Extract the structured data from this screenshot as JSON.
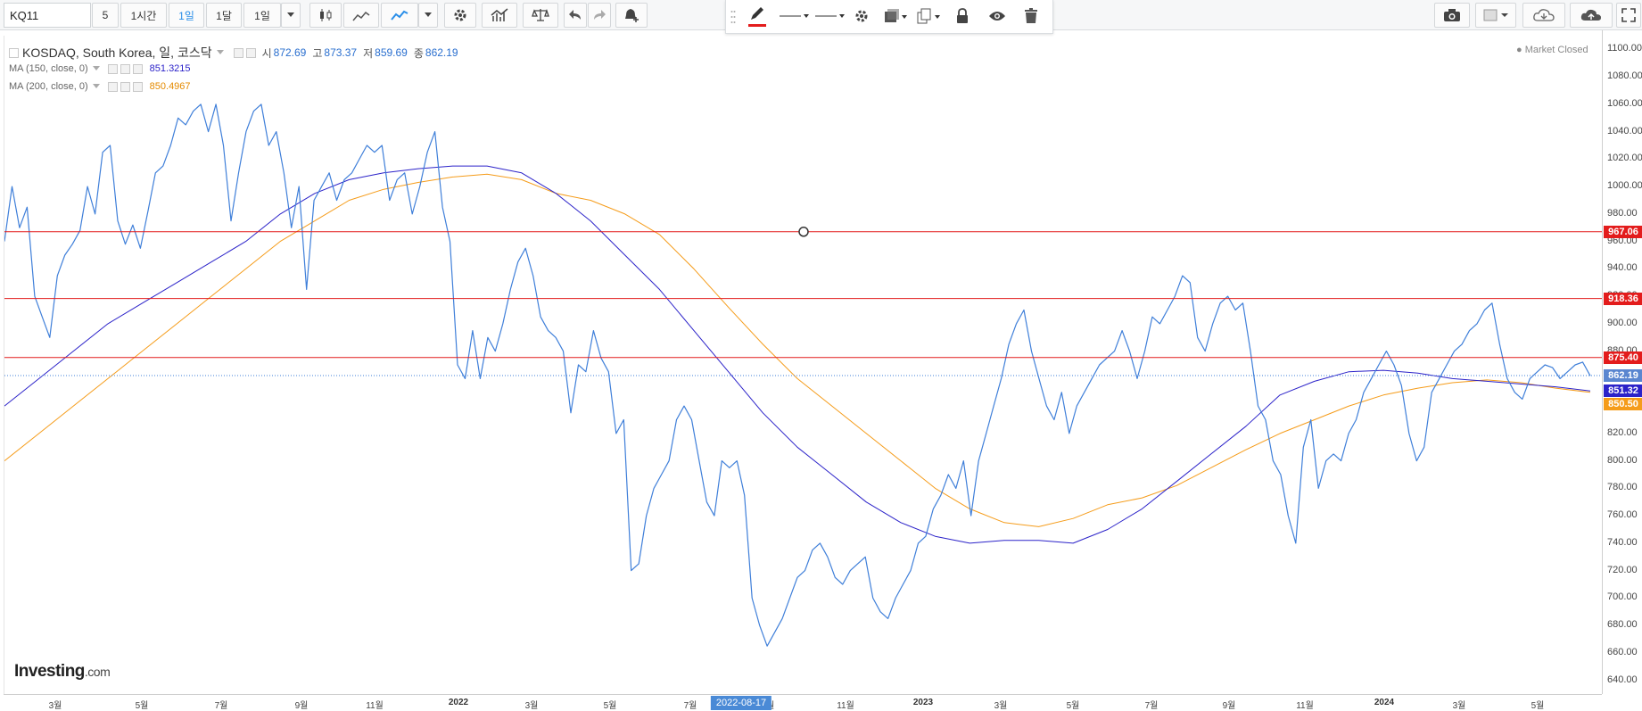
{
  "toolbar": {
    "symbol": "KQ11",
    "interval_buttons": [
      "5",
      "1시간",
      "1일",
      "1달",
      "1일"
    ],
    "active_interval_index": 2,
    "icons": [
      "candlestick-icon",
      "area-chart-icon",
      "line-chart-icon",
      "chevron-down-icon",
      "gear-icon",
      "indicators-icon",
      "compare-icon",
      "undo-icon",
      "redo-icon",
      "alert-add-icon"
    ],
    "right_icons": [
      "camera-icon",
      "color-square-icon",
      "cloud-download-icon",
      "cloud-upload-icon",
      "fullscreen-icon"
    ]
  },
  "drawing_toolbar": {
    "icons": [
      "pencil-icon",
      "line-style-icon",
      "line-width-icon",
      "gear-icon",
      "fill-icon",
      "clone-icon",
      "lock-icon",
      "eye-icon",
      "trash-icon"
    ],
    "accent_color": "#e31c1c"
  },
  "legend": {
    "title": "KOSDAQ, South Korea, 일, 코스닥",
    "ohlc": [
      {
        "label": "시",
        "value": "872.69"
      },
      {
        "label": "고",
        "value": "873.37"
      },
      {
        "label": "저",
        "value": "859.69"
      },
      {
        "label": "종",
        "value": "862.19"
      }
    ],
    "indicators": [
      {
        "label": "MA (150, close, 0)",
        "value": "851.3215",
        "color": "#2c23c9"
      },
      {
        "label": "MA (200, close, 0)",
        "value": "850.4967",
        "color": "#f59c1a"
      }
    ]
  },
  "market_status": "● Market Closed",
  "brand": {
    "name": "Investing",
    "suffix": ".com"
  },
  "price_tags": [
    {
      "value": "967.06",
      "color": "#e31c1c"
    },
    {
      "value": "918.36",
      "color": "#e31c1c"
    },
    {
      "value": "875.40",
      "color": "#e31c1c"
    },
    {
      "value": "862.19",
      "color": "#5a86d0"
    },
    {
      "value": "851.32",
      "color": "#2c23c9"
    },
    {
      "value": "850.50",
      "color": "#f59c1a"
    }
  ],
  "crosshair_date": "2022-08-17",
  "chart_data": {
    "type": "line",
    "title": "KOSDAQ, South Korea, 일, 코스닥",
    "ylim": [
      630,
      1110
    ],
    "y_ticks": [
      640,
      660,
      680,
      700,
      720,
      740,
      760,
      780,
      800,
      820,
      840,
      860,
      880,
      900,
      920,
      940,
      960,
      980,
      1000,
      1020,
      1040,
      1060,
      1080,
      1100
    ],
    "x_ticks": [
      "3월",
      "5월",
      "7월",
      "9월",
      "11월",
      "2022",
      "3월",
      "5월",
      "7월",
      "9월",
      "11월",
      "2023",
      "3월",
      "5월",
      "7월",
      "9월",
      "11월",
      "2024",
      "3월",
      "5월"
    ],
    "x_tick_years": [
      false,
      false,
      false,
      false,
      false,
      true,
      false,
      false,
      false,
      false,
      false,
      true,
      false,
      false,
      false,
      false,
      false,
      true,
      false,
      false
    ],
    "horizontal_lines": [
      967.06,
      918.36,
      875.4
    ],
    "last_price": 862.19,
    "series": [
      {
        "name": "KOSDAQ",
        "color": "#3f7fd9",
        "values": [
          960,
          1000,
          970,
          985,
          920,
          905,
          890,
          935,
          950,
          958,
          968,
          1000,
          980,
          1025,
          1030,
          975,
          958,
          972,
          955,
          982,
          1010,
          1015,
          1030,
          1050,
          1045,
          1055,
          1060,
          1040,
          1060,
          1030,
          975,
          1010,
          1040,
          1055,
          1060,
          1030,
          1040,
          1010,
          970,
          1000,
          925,
          990,
          1000,
          1010,
          990,
          1005,
          1010,
          1020,
          1030,
          1025,
          1030,
          990,
          1005,
          1010,
          980,
          1000,
          1025,
          1040,
          985,
          960,
          870,
          860,
          895,
          860,
          890,
          880,
          900,
          925,
          945,
          955,
          935,
          905,
          895,
          890,
          880,
          835,
          870,
          865,
          895,
          875,
          865,
          820,
          830,
          720,
          725,
          760,
          780,
          790,
          800,
          830,
          840,
          830,
          800,
          770,
          760,
          800,
          795,
          800,
          775,
          700,
          680,
          665,
          675,
          685,
          700,
          715,
          720,
          735,
          740,
          730,
          715,
          710,
          720,
          725,
          730,
          700,
          690,
          685,
          700,
          710,
          720,
          740,
          745,
          765,
          775,
          790,
          780,
          800,
          760,
          800,
          820,
          840,
          860,
          885,
          900,
          910,
          880,
          860,
          840,
          830,
          850,
          820,
          840,
          850,
          860,
          870,
          875,
          880,
          895,
          880,
          860,
          880,
          905,
          900,
          910,
          920,
          935,
          930,
          890,
          880,
          900,
          915,
          920,
          910,
          915,
          880,
          840,
          830,
          800,
          790,
          760,
          740,
          810,
          830,
          780,
          800,
          805,
          800,
          820,
          830,
          850,
          860,
          870,
          880,
          870,
          855,
          820,
          800,
          810,
          850,
          860,
          870,
          880,
          885,
          895,
          900,
          910,
          915,
          885,
          860,
          850,
          845,
          860,
          865,
          870,
          868,
          860,
          865,
          870,
          872,
          862
        ]
      },
      {
        "name": "MA (150, close, 0)",
        "color": "#2c23c9",
        "values": [
          840,
          860,
          880,
          900,
          915,
          930,
          945,
          960,
          980,
          995,
          1005,
          1010,
          1013,
          1015,
          1015,
          1010,
          995,
          975,
          950,
          925,
          895,
          865,
          835,
          810,
          790,
          770,
          755,
          745,
          740,
          742,
          742,
          740,
          750,
          765,
          785,
          805,
          825,
          848,
          858,
          865,
          866,
          864,
          860,
          858,
          856,
          854,
          851
        ]
      },
      {
        "name": "MA (200, close, 0)",
        "color": "#f59c1a",
        "values": [
          800,
          820,
          840,
          860,
          880,
          900,
          920,
          940,
          960,
          975,
          990,
          998,
          1003,
          1007,
          1009,
          1005,
          995,
          990,
          980,
          965,
          940,
          912,
          885,
          860,
          840,
          820,
          800,
          780,
          765,
          755,
          752,
          758,
          768,
          773,
          782,
          795,
          808,
          820,
          830,
          840,
          848,
          853,
          857,
          859,
          857,
          853,
          850
        ]
      }
    ]
  }
}
